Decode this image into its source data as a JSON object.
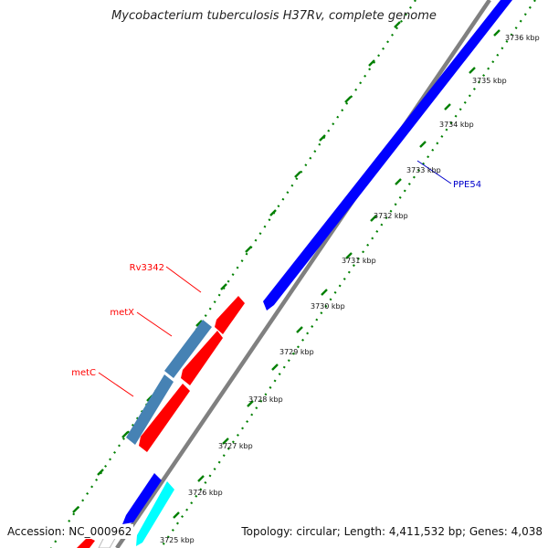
{
  "title": "Mycobacterium tuberculosis H37Rv, complete genome",
  "accession": "Accession: NC_000962",
  "topology": "Topology: circular; Length: 4,411,532 bp; Genes: 4,038",
  "colors": {
    "backbone": "#808080",
    "tick": "#008000",
    "forward_gene": "#0000ff",
    "reverse_gene": "#ff0000",
    "operon_gene": "#4682b4",
    "alt_gene": "#00ffff",
    "label_red": "#ff0000",
    "label_blue": "#0000cc"
  },
  "scale_labels": [
    "3725 kbp",
    "3726 kbp",
    "3727 kbp",
    "3728 kbp",
    "3729 kbp",
    "3730 kbp",
    "3731 kbp",
    "3732 kbp",
    "3733 kbp",
    "3734 kbp",
    "3735 kbp",
    "3736 kbp"
  ],
  "gene_labels": [
    {
      "name": "Rv3342",
      "strand": "reverse"
    },
    {
      "name": "metX",
      "strand": "reverse"
    },
    {
      "name": "metC",
      "strand": "reverse"
    },
    {
      "name": "PPE54",
      "strand": "forward"
    }
  ]
}
